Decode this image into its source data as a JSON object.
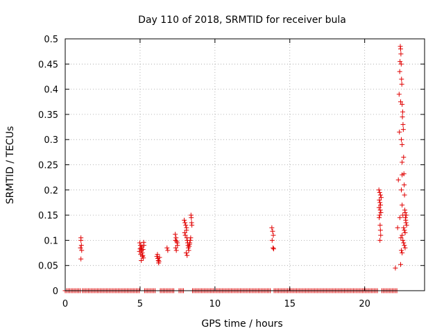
{
  "chart_data": {
    "type": "scatter",
    "title": "Day 110 of 2018, SRMTID for receiver bula",
    "xlabel": "GPS time / hours",
    "ylabel": "SRMTID / TECUs",
    "xlim": [
      0,
      24
    ],
    "ylim": [
      0,
      0.5
    ],
    "xticks": [
      0,
      5,
      10,
      15,
      20
    ],
    "xtick_labels": [
      "0",
      "5",
      "10",
      "15",
      "20"
    ],
    "yticks": [
      0,
      0.05,
      0.1,
      0.15,
      0.2,
      0.25,
      0.3,
      0.35,
      0.4,
      0.45,
      0.5
    ],
    "ytick_labels": [
      "0",
      "0.05",
      "0.1",
      "0.15",
      "0.2",
      "0.25",
      "0.3",
      "0.35",
      "0.4",
      "0.45",
      "0.5"
    ],
    "grid": true,
    "marker": "+",
    "color": "#e00000",
    "series": [
      {
        "name": "SRMTID",
        "points": [
          [
            1.05,
            0.105
          ],
          [
            1.05,
            0.1
          ],
          [
            1.08,
            0.09
          ],
          [
            1.02,
            0.085
          ],
          [
            1.1,
            0.08
          ],
          [
            1.05,
            0.063
          ],
          [
            4.98,
            0.095
          ],
          [
            5.02,
            0.09
          ],
          [
            5.06,
            0.085
          ],
          [
            5.1,
            0.08
          ],
          [
            5.14,
            0.075
          ],
          [
            5.18,
            0.07
          ],
          [
            5.22,
            0.065
          ],
          [
            5.26,
            0.09
          ],
          [
            5.08,
            0.06
          ],
          [
            5.04,
            0.072
          ],
          [
            5.12,
            0.088
          ],
          [
            5.2,
            0.082
          ],
          [
            4.96,
            0.078
          ],
          [
            5.16,
            0.068
          ],
          [
            5.24,
            0.096
          ],
          [
            5.0,
            0.083
          ],
          [
            6.12,
            0.068
          ],
          [
            6.18,
            0.064
          ],
          [
            6.22,
            0.06
          ],
          [
            6.26,
            0.058
          ],
          [
            6.3,
            0.066
          ],
          [
            6.16,
            0.072
          ],
          [
            6.24,
            0.055
          ],
          [
            6.8,
            0.085
          ],
          [
            6.85,
            0.08
          ],
          [
            7.35,
            0.112
          ],
          [
            7.4,
            0.105
          ],
          [
            7.45,
            0.098
          ],
          [
            7.5,
            0.09
          ],
          [
            7.38,
            0.085
          ],
          [
            7.42,
            0.08
          ],
          [
            7.48,
            0.095
          ],
          [
            7.36,
            0.1
          ],
          [
            7.95,
            0.14
          ],
          [
            8.0,
            0.135
          ],
          [
            8.05,
            0.13
          ],
          [
            8.1,
            0.125
          ],
          [
            7.98,
            0.115
          ],
          [
            8.02,
            0.11
          ],
          [
            8.12,
            0.105
          ],
          [
            8.15,
            0.1
          ],
          [
            8.18,
            0.095
          ],
          [
            8.2,
            0.09
          ],
          [
            8.22,
            0.085
          ],
          [
            8.25,
            0.08
          ],
          [
            8.08,
            0.075
          ],
          [
            8.14,
            0.07
          ],
          [
            8.28,
            0.088
          ],
          [
            8.3,
            0.092
          ],
          [
            8.35,
            0.1
          ],
          [
            8.38,
            0.105
          ],
          [
            8.4,
            0.15
          ],
          [
            8.42,
            0.145
          ],
          [
            8.44,
            0.135
          ],
          [
            8.46,
            0.13
          ],
          [
            8.1,
            0.12
          ],
          [
            8.32,
            0.095
          ],
          [
            13.8,
            0.125
          ],
          [
            13.85,
            0.118
          ],
          [
            13.9,
            0.11
          ],
          [
            13.82,
            0.1
          ],
          [
            13.88,
            0.085
          ],
          [
            13.92,
            0.083
          ],
          [
            20.95,
            0.2
          ],
          [
            21.0,
            0.195
          ],
          [
            21.05,
            0.19
          ],
          [
            21.1,
            0.185
          ],
          [
            20.98,
            0.18
          ],
          [
            21.02,
            0.175
          ],
          [
            21.06,
            0.17
          ],
          [
            20.96,
            0.165
          ],
          [
            21.04,
            0.16
          ],
          [
            21.08,
            0.155
          ],
          [
            21.0,
            0.15
          ],
          [
            21.03,
            0.13
          ],
          [
            21.05,
            0.12
          ],
          [
            21.07,
            0.11
          ],
          [
            21.02,
            0.1
          ],
          [
            20.97,
            0.145
          ],
          [
            22.05,
            0.045
          ],
          [
            22.2,
            0.125
          ],
          [
            22.25,
            0.22
          ],
          [
            22.3,
            0.39
          ],
          [
            22.32,
            0.315
          ],
          [
            22.34,
            0.435
          ],
          [
            22.36,
            0.455
          ],
          [
            22.38,
            0.485
          ],
          [
            22.4,
            0.48
          ],
          [
            22.42,
            0.47
          ],
          [
            22.44,
            0.45
          ],
          [
            22.46,
            0.42
          ],
          [
            22.48,
            0.41
          ],
          [
            22.4,
            0.375
          ],
          [
            22.5,
            0.37
          ],
          [
            22.52,
            0.345
          ],
          [
            22.54,
            0.355
          ],
          [
            22.45,
            0.3
          ],
          [
            22.56,
            0.33
          ],
          [
            22.58,
            0.32
          ],
          [
            22.5,
            0.29
          ],
          [
            22.6,
            0.265
          ],
          [
            22.5,
            0.255
          ],
          [
            22.62,
            0.232
          ],
          [
            22.5,
            0.23
          ],
          [
            22.64,
            0.21
          ],
          [
            22.45,
            0.2
          ],
          [
            22.66,
            0.19
          ],
          [
            22.5,
            0.17
          ],
          [
            22.68,
            0.16
          ],
          [
            22.55,
            0.15
          ],
          [
            22.7,
            0.155
          ],
          [
            22.72,
            0.145
          ],
          [
            22.74,
            0.14
          ],
          [
            22.76,
            0.135
          ],
          [
            22.78,
            0.15
          ],
          [
            22.6,
            0.125
          ],
          [
            22.65,
            0.12
          ],
          [
            22.7,
            0.115
          ],
          [
            22.5,
            0.11
          ],
          [
            22.55,
            0.1
          ],
          [
            22.6,
            0.095
          ],
          [
            22.65,
            0.09
          ],
          [
            22.7,
            0.085
          ],
          [
            22.45,
            0.08
          ],
          [
            22.5,
            0.075
          ],
          [
            22.4,
            0.052
          ],
          [
            22.8,
            0.13
          ],
          [
            22.35,
            0.145
          ],
          [
            22.42,
            0.105
          ]
        ],
        "zero_runs": [
          [
            0.0,
            1.0
          ],
          [
            1.15,
            4.95
          ],
          [
            5.3,
            6.05
          ],
          [
            6.35,
            7.3
          ],
          [
            7.6,
            7.9
          ],
          [
            8.5,
            13.75
          ],
          [
            13.95,
            20.9
          ],
          [
            21.15,
            22.2
          ]
        ]
      }
    ]
  }
}
